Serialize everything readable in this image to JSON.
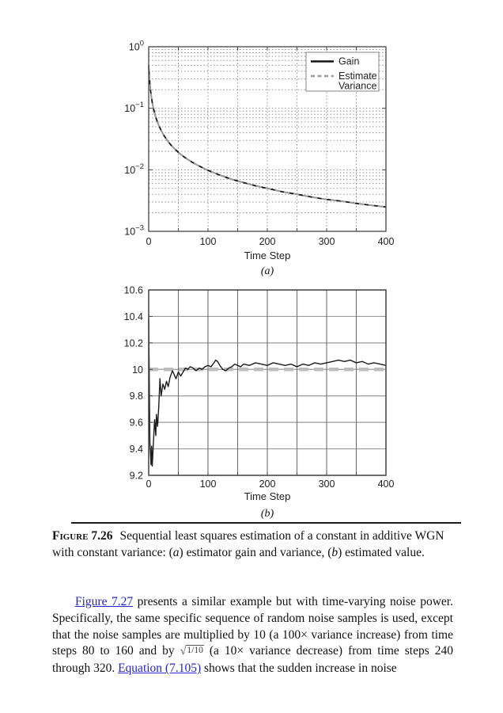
{
  "page": {
    "background": "#ffffff"
  },
  "figure_caption": {
    "label": "Figure 7.26",
    "segments": [
      {
        "italic": false,
        "text": "Sequential least squares estimation of a constant in additive WGN with constant variance: ("
      },
      {
        "italic": true,
        "text": "a"
      },
      {
        "italic": false,
        "text": ") estimator gain and variance, ("
      },
      {
        "italic": true,
        "text": "b"
      },
      {
        "italic": false,
        "text": ") estimated value."
      }
    ]
  },
  "body_paragraph": {
    "link_color": "#2424cc",
    "segments": [
      {
        "type": "link",
        "name": "figure-7-27-link",
        "text": "Figure 7.27"
      },
      {
        "type": "text",
        "text": " presents a similar example but with time-varying noise power. Specifically, the same specific sequence of random noise samples is used, except that the noise samples are multiplied by 10 (a 100× variance increase) from time steps 80 to 160 and by "
      },
      {
        "type": "sqrt",
        "text": "1/10"
      },
      {
        "type": "text",
        "text": " (a 10× variance decrease) from time steps 240 through 320. "
      },
      {
        "type": "link",
        "name": "equation-7-105-link",
        "text": "Equation (7.105)"
      },
      {
        "type": "text",
        "text": " shows that the sudden increase in noise"
      }
    ]
  },
  "chart_data": [
    {
      "type": "line",
      "title": "",
      "xlabel": "Time Step",
      "sublabel": "(a)",
      "x_range": [
        0,
        400
      ],
      "xticks": [
        0,
        100,
        200,
        300,
        400
      ],
      "x_grid_interval": 50,
      "y_scale": "log",
      "y_range": [
        0.001,
        1
      ],
      "ytick_exponents": [
        0,
        -1,
        -2,
        -3
      ],
      "grid": "dotted",
      "legend_position": "top-right",
      "legend": [
        {
          "label": "Gain",
          "lines": [
            "Gain"
          ],
          "style": "solid",
          "color": "#141414"
        },
        {
          "label": "Estimate Variance",
          "lines": [
            "Estimate",
            "Variance"
          ],
          "style": "dashed",
          "color": "#9c9c9c"
        }
      ],
      "series": [
        {
          "name": "Gain",
          "x": [
            0,
            1,
            2,
            3,
            4,
            5,
            6,
            8,
            10,
            12,
            15,
            20,
            25,
            30,
            35,
            40,
            50,
            60,
            70,
            80,
            90,
            100,
            120,
            140,
            160,
            180,
            200,
            225,
            250,
            275,
            300,
            325,
            350,
            375,
            400
          ],
          "y": [
            0.5,
            0.333,
            0.25,
            0.2,
            0.167,
            0.143,
            0.125,
            0.1,
            0.0833,
            0.0714,
            0.0588,
            0.0455,
            0.037,
            0.0313,
            0.027,
            0.0238,
            0.0192,
            0.0161,
            0.0139,
            0.0122,
            0.0109,
            0.0098,
            0.0082,
            0.007,
            0.0062,
            0.0055,
            0.005,
            0.0044,
            0.004,
            0.0036,
            0.0033,
            0.0031,
            0.00284,
            0.00265,
            0.00249
          ]
        },
        {
          "name": "Estimate Variance",
          "x": [
            0,
            1,
            2,
            3,
            4,
            5,
            6,
            8,
            10,
            12,
            15,
            20,
            25,
            30,
            35,
            40,
            50,
            60,
            70,
            80,
            90,
            100,
            120,
            140,
            160,
            180,
            200,
            225,
            250,
            275,
            300,
            325,
            350,
            375,
            400
          ],
          "y": [
            0.5,
            0.333,
            0.25,
            0.2,
            0.167,
            0.143,
            0.125,
            0.1,
            0.0833,
            0.0714,
            0.0588,
            0.0455,
            0.037,
            0.0313,
            0.027,
            0.0238,
            0.0192,
            0.0161,
            0.0139,
            0.0122,
            0.0109,
            0.0098,
            0.0082,
            0.007,
            0.0062,
            0.0055,
            0.005,
            0.0044,
            0.004,
            0.0036,
            0.0033,
            0.0031,
            0.00284,
            0.00265,
            0.00249
          ]
        }
      ]
    },
    {
      "type": "line",
      "title": "",
      "xlabel": "Time Step",
      "sublabel": "(b)",
      "x_range": [
        0,
        400
      ],
      "xticks": [
        0,
        100,
        200,
        300,
        400
      ],
      "x_grid_interval": 50,
      "y_scale": "linear",
      "y_range": [
        9.2,
        10.6
      ],
      "yticks": [
        9.2,
        9.4,
        9.6,
        9.8,
        10,
        10.2,
        10.4,
        10.6
      ],
      "grid": "solid",
      "reference_line": {
        "value": 10,
        "style": "dashed",
        "color": "#bdbdbd"
      },
      "series": [
        {
          "name": "Estimated value",
          "x": [
            0,
            2,
            4,
            5,
            6,
            8,
            10,
            12,
            13,
            15,
            17,
            19,
            21,
            24,
            27,
            30,
            33,
            36,
            40,
            43,
            46,
            50,
            54,
            58,
            62,
            66,
            70,
            75,
            80,
            85,
            90,
            95,
            100,
            105,
            110,
            113,
            116,
            120,
            125,
            130,
            135,
            140,
            145,
            150,
            155,
            160,
            170,
            180,
            190,
            200,
            210,
            220,
            230,
            240,
            250,
            260,
            270,
            280,
            290,
            300,
            310,
            320,
            330,
            340,
            350,
            360,
            370,
            380,
            390,
            400
          ],
          "y": [
            10.38,
            9.45,
            9.28,
            9.42,
            9.27,
            9.45,
            9.62,
            9.5,
            9.66,
            9.57,
            9.72,
            9.93,
            9.8,
            9.89,
            9.85,
            9.91,
            9.87,
            9.94,
            9.99,
            9.96,
            9.93,
            9.98,
            9.95,
            9.98,
            10.01,
            10.0,
            10.02,
            10.01,
            9.99,
            10.01,
            10.0,
            10.02,
            10.03,
            10.02,
            10.05,
            10.07,
            10.06,
            10.03,
            10.0,
            9.99,
            10.01,
            10.02,
            10.04,
            10.03,
            10.02,
            10.04,
            10.03,
            10.05,
            10.04,
            10.03,
            10.05,
            10.04,
            10.03,
            10.04,
            10.02,
            10.04,
            10.03,
            10.05,
            10.04,
            10.05,
            10.06,
            10.07,
            10.06,
            10.07,
            10.05,
            10.06,
            10.04,
            10.05,
            10.04,
            10.03
          ]
        }
      ]
    }
  ]
}
